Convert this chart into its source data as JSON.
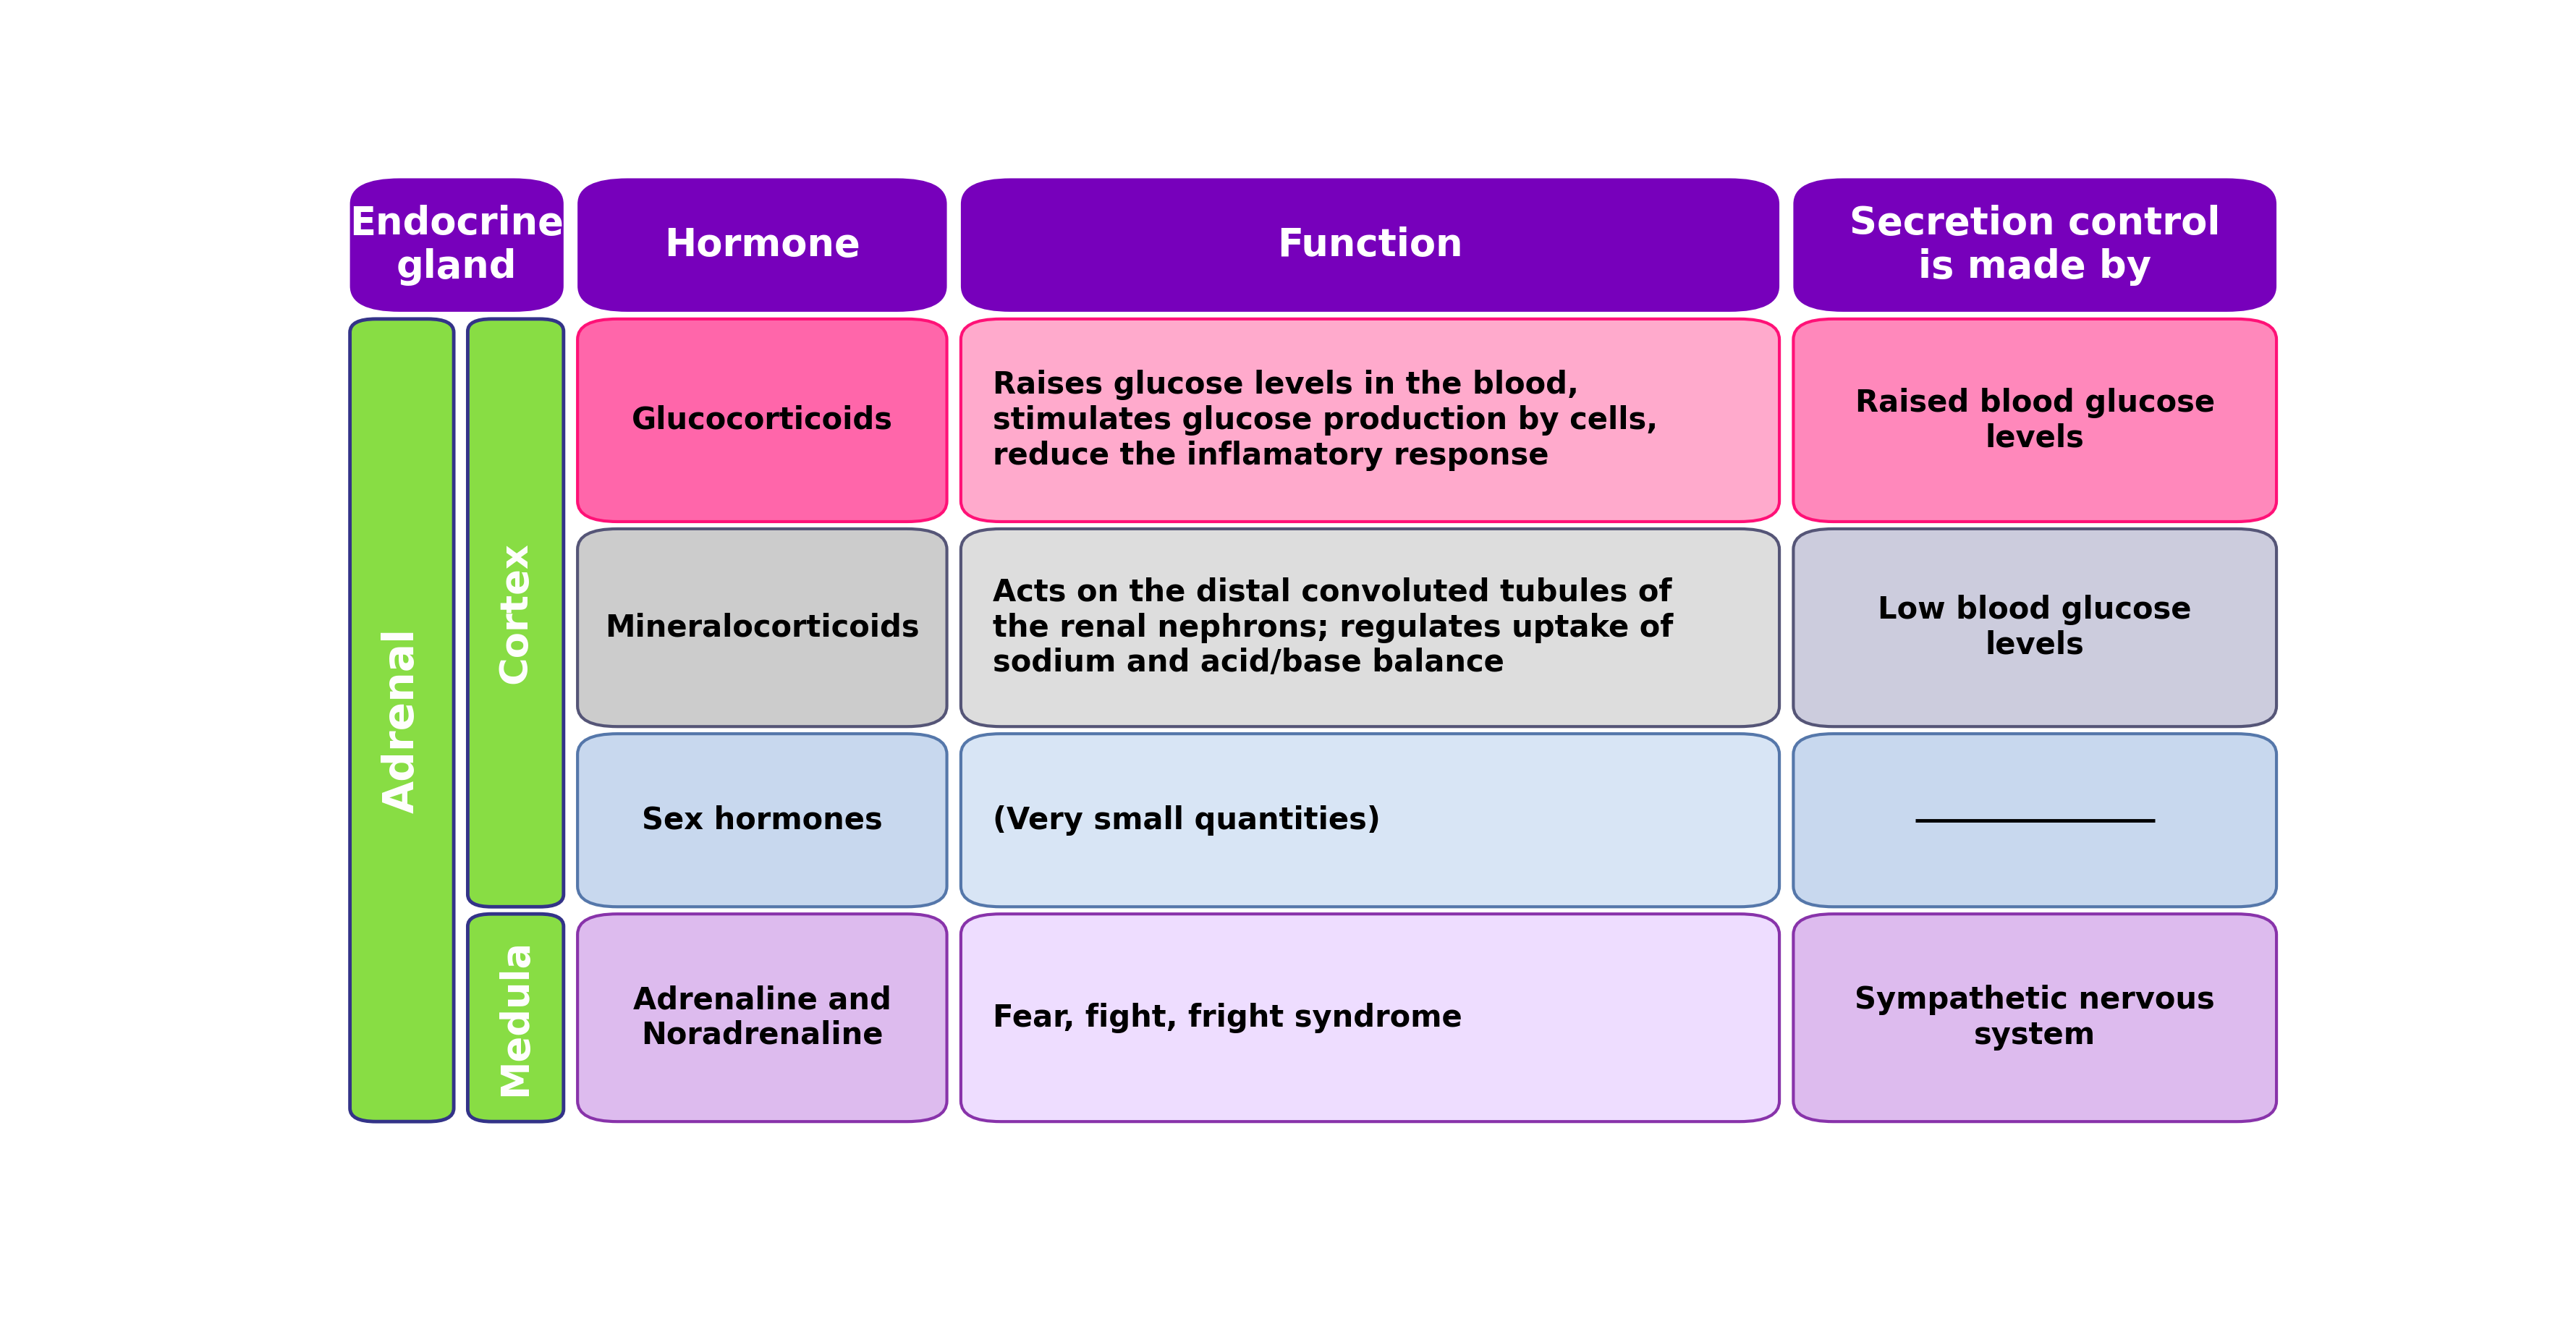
{
  "background_color": "#ffffff",
  "fig_width": 35.6,
  "fig_height": 18.41,
  "header_bg": "#7700bb",
  "header_text_color": "#ffffff",
  "header_font_size": 38,
  "adrenal_bg": "#88dd44",
  "adrenal_border": "#333388",
  "adrenal_text": "Adrenal",
  "adrenal_text_color": "#ffffff",
  "cortex_bg": "#88dd44",
  "cortex_border": "#333388",
  "cortex_text": "Cortex",
  "cortex_text_color": "#ffffff",
  "medula_bg": "#88dd44",
  "medula_border": "#333388",
  "medula_text": "Medula",
  "medula_text_color": "#ffffff",
  "row1_hormone_bg": "#ff66aa",
  "row1_hormone_border": "#ff1177",
  "row1_hormone_text": "Glucocorticoids",
  "row1_function_bg": "#ffaacc",
  "row1_function_border": "#ff1177",
  "row1_function_text": "Raises glucose levels in the blood,\nstimulates glucose production by cells,\nreduce the inflamatory response",
  "row1_secretion_bg": "#ff88bb",
  "row1_secretion_border": "#ff1177",
  "row1_secretion_text": "Raised blood glucose\nlevels",
  "row2_hormone_bg": "#cccccc",
  "row2_hormone_border": "#555577",
  "row2_hormone_text": "Mineralocorticoids",
  "row2_function_bg": "#dddddd",
  "row2_function_border": "#555577",
  "row2_function_text": "Acts on the distal convoluted tubules of\nthe renal nephrons; regulates uptake of\nsodium and acid/base balance",
  "row2_secretion_bg": "#ccccdd",
  "row2_secretion_border": "#555577",
  "row2_secretion_text": "Low blood glucose\nlevels",
  "row3_hormone_bg": "#c8d8ee",
  "row3_hormone_border": "#5577aa",
  "row3_hormone_text": "Sex hormones",
  "row3_function_bg": "#d8e5f5",
  "row3_function_border": "#5577aa",
  "row3_function_text": "(Very small quantities)",
  "row3_secretion_bg": "#c8d8ee",
  "row3_secretion_border": "#5577aa",
  "row3_secretion_text": "—",
  "row4_hormone_bg": "#ddbbee",
  "row4_hormone_border": "#8833aa",
  "row4_hormone_text": "Adrenaline and\nNoradrenaline",
  "row4_function_bg": "#eeddff",
  "row4_function_border": "#8833aa",
  "row4_function_text": "Fear, fight, fright syndrome",
  "row4_secretion_bg": "#ddbbee",
  "row4_secretion_border": "#8833aa",
  "row4_secretion_text": "Sympathetic nervous\nsystem",
  "cell_font_size": 30,
  "cell_text_color": "#000000"
}
